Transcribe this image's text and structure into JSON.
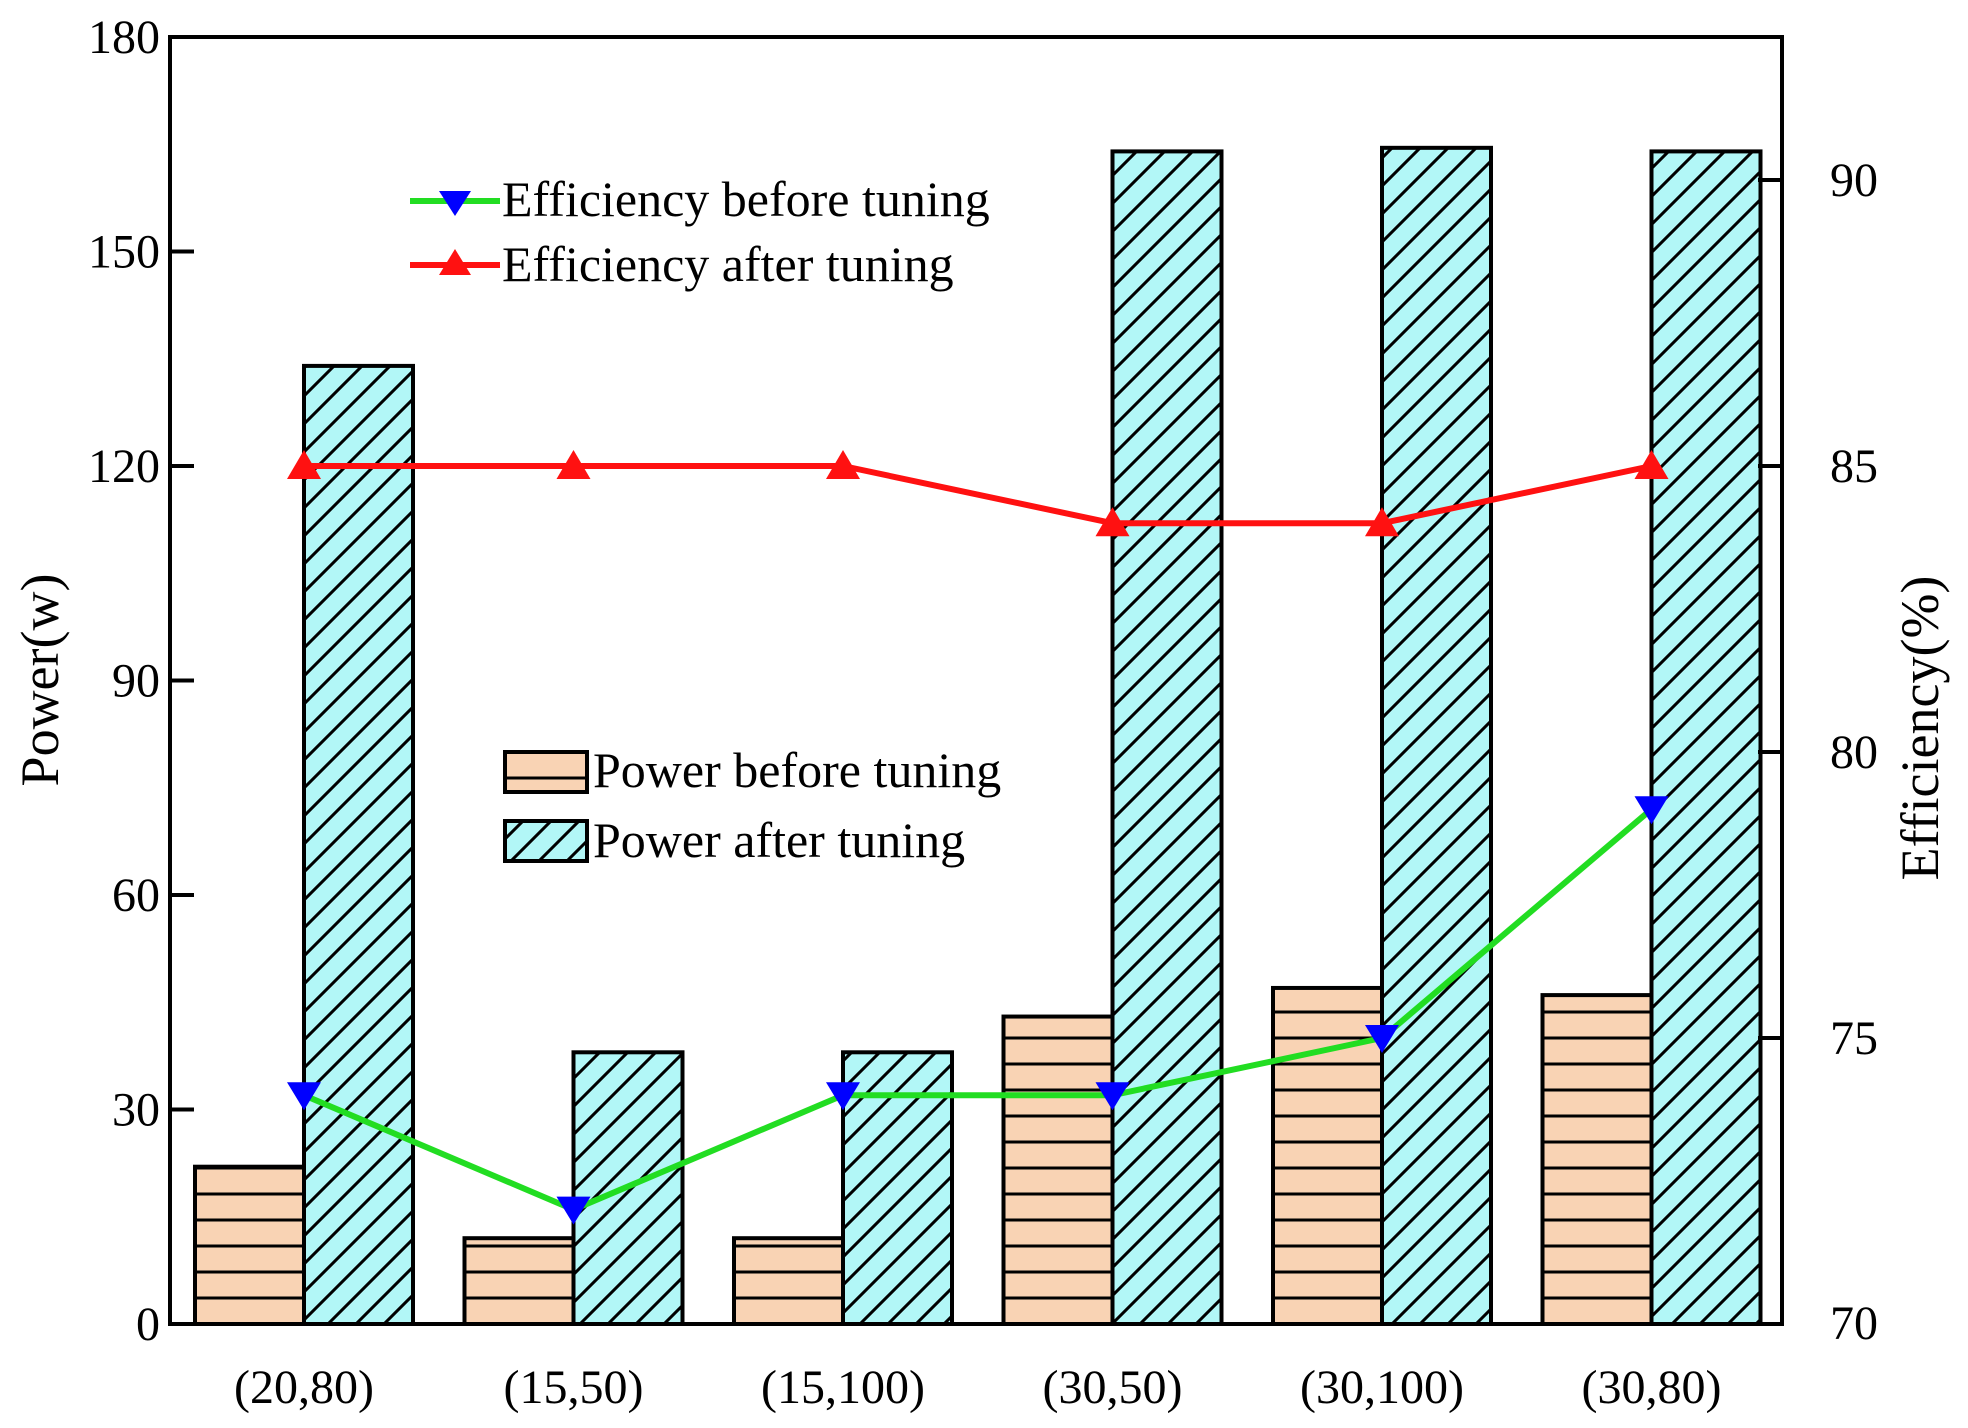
{
  "chart_data": {
    "type": "bar",
    "categories": [
      "(20,80)",
      "(15,50)",
      "(15,100)",
      "(30,50)",
      "(30,100)",
      "(30,80)"
    ],
    "series": [
      {
        "name": "Power before tuning",
        "axis": "left",
        "kind": "bar",
        "pattern": "horizontal-lines",
        "fill": "#f9d3b4",
        "values": [
          22,
          12,
          12,
          43,
          47,
          46
        ]
      },
      {
        "name": "Power after tuning",
        "axis": "left",
        "kind": "bar",
        "pattern": "diagonal-hatch",
        "fill": "#b2f7f7",
        "values": [
          134,
          38,
          38,
          164,
          164.5,
          164
        ]
      },
      {
        "name": "Efficiency before tuning",
        "axis": "right",
        "kind": "line",
        "marker": "triangle-down",
        "line_color": "#22dd22",
        "marker_color": "#0000ff",
        "values": [
          74,
          72,
          74,
          74,
          75,
          79
        ]
      },
      {
        "name": "Efficiency after tuning",
        "axis": "right",
        "kind": "line",
        "marker": "triangle-up",
        "line_color": "#ff1111",
        "marker_color": "#ff1111",
        "values": [
          85,
          85,
          85,
          84,
          84,
          85
        ]
      }
    ],
    "ylabel": "Power(w)",
    "y2label": "Efficiency(%)",
    "ylim": [
      0,
      180
    ],
    "yticks": [
      "0",
      "30",
      "60",
      "90",
      "120",
      "150",
      "180"
    ],
    "y2lim": [
      70,
      92.5
    ],
    "y2ticks": [
      "70",
      "75",
      "80",
      "85",
      "90"
    ],
    "grid": false,
    "legend": {
      "lines_position": "top-center",
      "bars_position": "center"
    }
  }
}
